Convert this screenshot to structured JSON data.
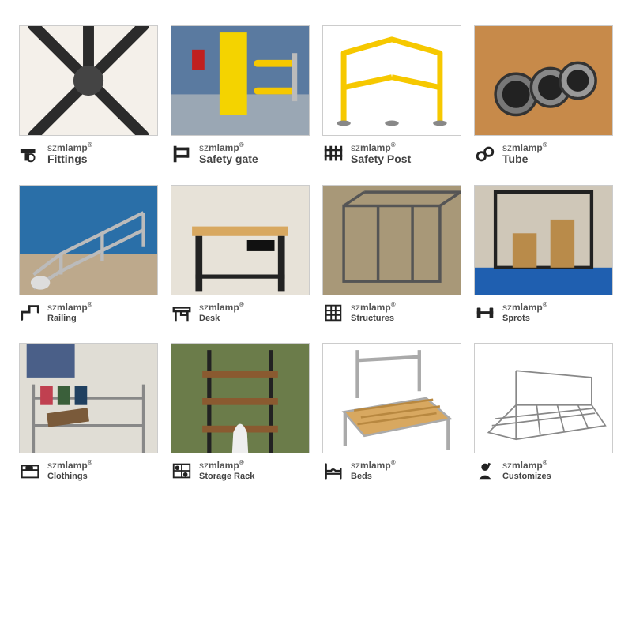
{
  "brand_prefix": "sz",
  "brand_suffix": "mlamp",
  "registered": "®",
  "products": [
    {
      "key": "fittings",
      "label": "Fittings",
      "icon": "fitting-icon",
      "label_size": "med"
    },
    {
      "key": "safety_gate",
      "label": "Safety gate",
      "icon": "gate-icon",
      "label_size": "med"
    },
    {
      "key": "safety_post",
      "label": "Safety Post",
      "icon": "fence-icon",
      "label_size": "med"
    },
    {
      "key": "tube",
      "label": "Tube",
      "icon": "tube-icon",
      "label_size": "med"
    },
    {
      "key": "railing",
      "label": "Railing",
      "icon": "railing-icon",
      "label_size": "small"
    },
    {
      "key": "desk",
      "label": "Desk",
      "icon": "desk-icon",
      "label_size": "small"
    },
    {
      "key": "structures",
      "label": "Structures",
      "icon": "structures-icon",
      "label_size": "small"
    },
    {
      "key": "sports",
      "label": "Sprots",
      "icon": "sports-icon",
      "label_size": "small"
    },
    {
      "key": "clothings",
      "label": "Clothings",
      "icon": "clothings-icon",
      "label_size": "small"
    },
    {
      "key": "storage",
      "label": "Storage Rack",
      "icon": "storage-icon",
      "label_size": "small"
    },
    {
      "key": "beds",
      "label": "Beds",
      "icon": "bed-icon",
      "label_size": "small"
    },
    {
      "key": "customizes",
      "label": "Customizes",
      "icon": "customize-icon",
      "label_size": "small"
    }
  ],
  "colors": {
    "bg": "#ffffff",
    "thumb_border": "#ccc",
    "text": "#444",
    "brand": "#555",
    "icon": "#222",
    "yellow": "#f4d300",
    "safety_yellow": "#f6c800",
    "wood": "#d8a860",
    "blue": "#2a6fa8",
    "green": "#6b7c4a",
    "dark": "#2b2b2b",
    "grey": "#888",
    "floor_blue": "#1f5fb0"
  }
}
